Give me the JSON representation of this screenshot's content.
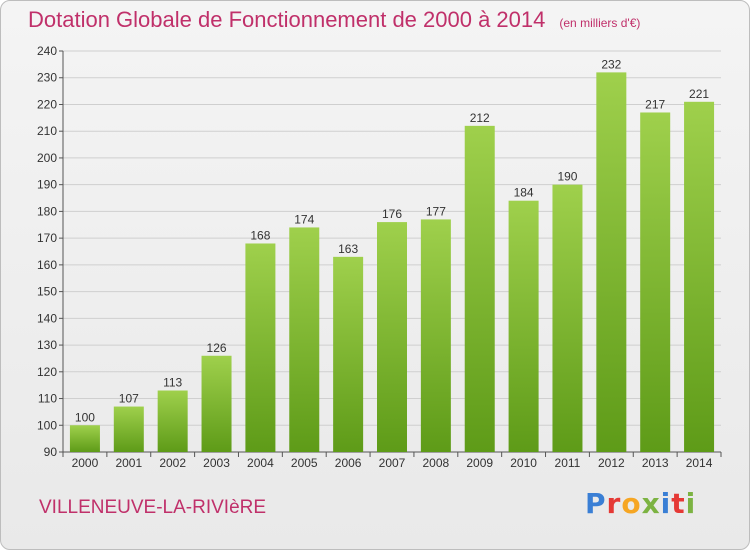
{
  "header": {
    "title": "Dotation Globale de Fonctionnement de 2000 à 2014",
    "unit": "(en milliers d'€)"
  },
  "footer": {
    "commune": "VILLENEUVE-LA-RIVIèRE",
    "logo_text": "Proxiti",
    "logo_colors": [
      "#3a7fd5",
      "#e53935",
      "#f6a623",
      "#7cb342",
      "#3a7fd5",
      "#e53935",
      "#7cb342"
    ]
  },
  "chart_data": {
    "type": "bar",
    "title": "Dotation Globale de Fonctionnement de 2000 à 2014",
    "subtitle": "(en milliers d'€)",
    "categories": [
      "2000",
      "2001",
      "2002",
      "2003",
      "2004",
      "2005",
      "2006",
      "2007",
      "2008",
      "2009",
      "2010",
      "2011",
      "2012",
      "2013",
      "2014"
    ],
    "values": [
      100,
      107,
      113,
      126,
      168,
      174,
      163,
      176,
      177,
      212,
      184,
      190,
      232,
      217,
      221
    ],
    "ylim": [
      90,
      240
    ],
    "yticks": [
      90,
      100,
      110,
      120,
      130,
      140,
      150,
      160,
      170,
      180,
      190,
      200,
      210,
      220,
      230,
      240
    ],
    "grid": true,
    "bar_color_top": "#9fd04c",
    "bar_color_bottom": "#5e9b18"
  }
}
